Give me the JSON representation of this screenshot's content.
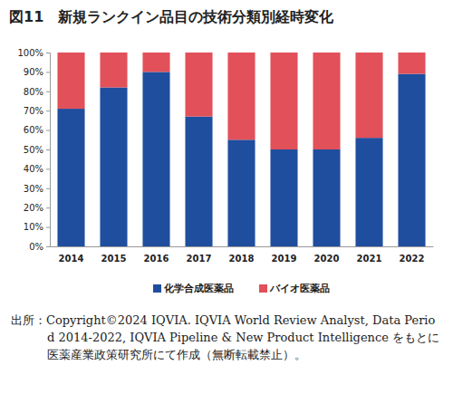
{
  "chart_data": {
    "type": "bar",
    "title": "図11　新規ランクイン品目の技術分類別経時変化",
    "categories": [
      "2014",
      "2015",
      "2016",
      "2017",
      "2018",
      "2019",
      "2020",
      "2021",
      "2022"
    ],
    "series": [
      {
        "name": "化学合成医薬品",
        "color": "#1f4e9e",
        "values": [
          71,
          82,
          90,
          67,
          55,
          50,
          50,
          56,
          89
        ]
      },
      {
        "name": "バイオ医薬品",
        "color": "#e2505a",
        "values": [
          29,
          18,
          10,
          33,
          45,
          50,
          50,
          44,
          11
        ]
      }
    ],
    "stacked": true,
    "ylim": [
      0,
      100
    ],
    "yticks": [
      {
        "value": 0,
        "label": "0%"
      },
      {
        "value": 10,
        "label": "10%"
      },
      {
        "value": 20,
        "label": "20%"
      },
      {
        "value": 30,
        "label": "30%"
      },
      {
        "value": 40,
        "label": "40%"
      },
      {
        "value": 50,
        "label": "50%"
      },
      {
        "value": 60,
        "label": "60%"
      },
      {
        "value": 70,
        "label": "70%"
      },
      {
        "value": 80,
        "label": "80%"
      },
      {
        "value": 90,
        "label": "90%"
      },
      {
        "value": 100,
        "label": "100%"
      }
    ],
    "grid": false,
    "legend": "bottom",
    "data_labels": false,
    "source": "出所：Copyright©2024 IQVIA. IQVIA World Review Analyst, Data Period 2014-2022, IQVIA Pipeline & New Product Intelligence をもとに医薬産業政策研究所にて作成（無断転載禁止）。"
  }
}
